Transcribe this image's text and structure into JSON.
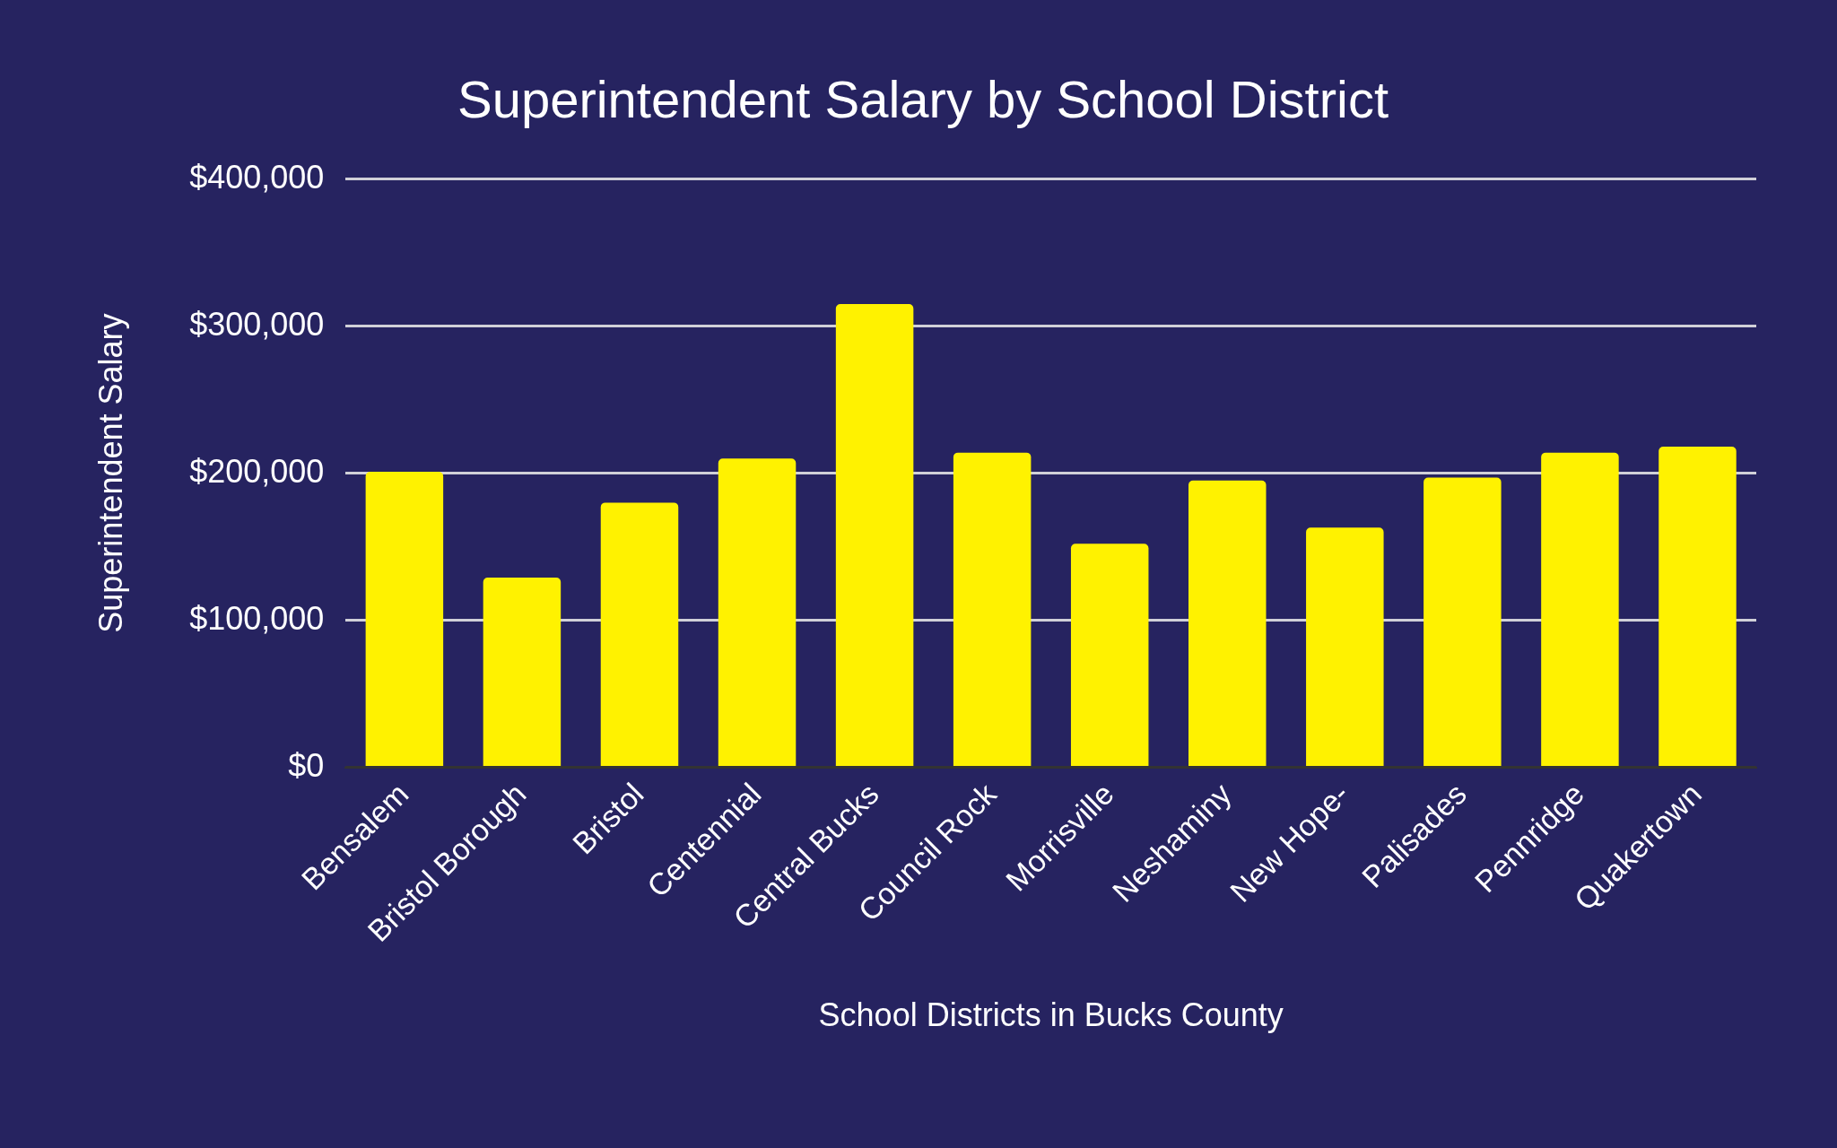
{
  "chart_data": {
    "type": "bar",
    "title": "Superintendent Salary by School District",
    "xlabel": "School Districts in Bucks County",
    "ylabel": "Superintendent Salary",
    "categories": [
      "Bensalem",
      "Bristol Borough",
      "Bristol",
      "Centennial",
      "Central Bucks",
      "Council Rock",
      "Morrisville",
      "Neshaminy",
      "New Hope-",
      "Palisades",
      "Pennridge",
      "Quakertown"
    ],
    "values": [
      201000,
      129000,
      180000,
      210000,
      315000,
      214000,
      152000,
      195000,
      163000,
      197000,
      214000,
      218000
    ],
    "color": "#fff200",
    "ylim": [
      0,
      400000
    ],
    "yticks": [
      {
        "value": 0,
        "label": "$0"
      },
      {
        "value": 100000,
        "label": "$100,000"
      },
      {
        "value": 200000,
        "label": "$200,000"
      },
      {
        "value": 300000,
        "label": "$300,000"
      },
      {
        "value": 400000,
        "label": "$400,000"
      }
    ],
    "grid": "y"
  }
}
